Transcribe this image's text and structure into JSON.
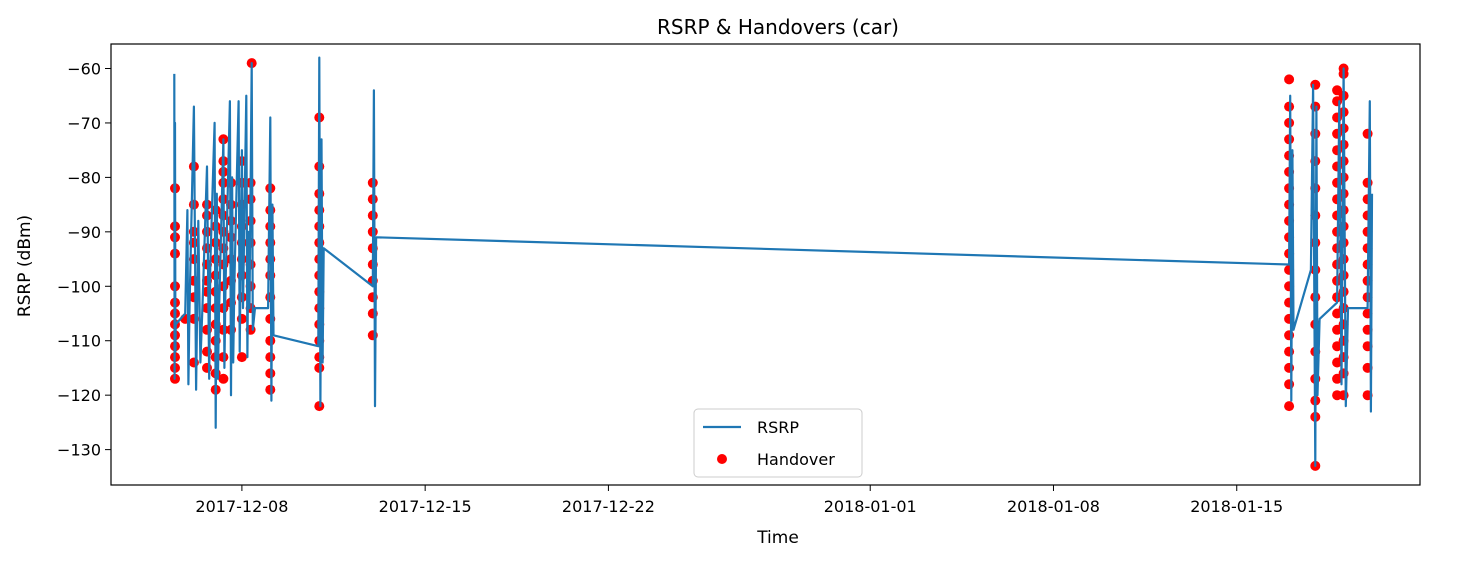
{
  "chart_data": {
    "type": "line",
    "title": "RSRP & Handovers (car)",
    "xlabel": "Time",
    "ylabel": "RSRP (dBm)",
    "x_axis_type": "date",
    "xlim": [
      "2017-12-03T00:00",
      "2018-01-22T00:00"
    ],
    "ylim": [
      -136.5,
      -55.5
    ],
    "x_ticks": [
      "2017-12-08",
      "2017-12-15",
      "2017-12-22",
      "2018-01-01",
      "2018-01-08",
      "2018-01-15"
    ],
    "y_ticks": [
      -60,
      -70,
      -80,
      -90,
      -100,
      -110,
      -120,
      -130
    ],
    "grid": false,
    "legend_position": "lower center",
    "colors": {
      "rsrp": "#1f77b4",
      "handover": "#ff0000"
    },
    "series": [
      {
        "name": "RSRP",
        "kind": "line",
        "points": [
          [
            "2017-12-05T10:00",
            -61
          ],
          [
            "2017-12-05T10:20",
            -117
          ],
          [
            "2017-12-05T10:40",
            -70
          ],
          [
            "2017-12-05T11:00",
            -112
          ],
          [
            "2017-12-05T11:20",
            -107
          ],
          [
            "2017-12-05T20:00",
            -105
          ],
          [
            "2017-12-05T22:00",
            -86
          ],
          [
            "2017-12-05T23:00",
            -118
          ],
          [
            "2017-12-06T00:00",
            -104
          ],
          [
            "2017-12-06T04:00",
            -67
          ],
          [
            "2017-12-06T06:00",
            -119
          ],
          [
            "2017-12-06T08:00",
            -88
          ],
          [
            "2017-12-06T10:00",
            -114
          ],
          [
            "2017-12-06T12:00",
            -103
          ],
          [
            "2017-12-06T16:00",
            -78
          ],
          [
            "2017-12-06T18:00",
            -117
          ],
          [
            "2017-12-06T19:00",
            -96
          ],
          [
            "2017-12-06T23:00",
            -70
          ],
          [
            "2017-12-07T00:00",
            -126
          ],
          [
            "2017-12-07T01:00",
            -83
          ],
          [
            "2017-12-07T02:00",
            -117
          ],
          [
            "2017-12-07T03:00",
            -105
          ],
          [
            "2017-12-07T07:00",
            -73
          ],
          [
            "2017-12-07T08:00",
            -115
          ],
          [
            "2017-12-07T09:00",
            -100
          ],
          [
            "2017-12-07T13:00",
            -66
          ],
          [
            "2017-12-07T14:00",
            -120
          ],
          [
            "2017-12-07T15:00",
            -80
          ],
          [
            "2017-12-07T16:00",
            -114
          ],
          [
            "2017-12-07T17:00",
            -100
          ],
          [
            "2017-12-07T21:00",
            -66
          ],
          [
            "2017-12-07T22:00",
            -112
          ],
          [
            "2017-12-08T00:00",
            -75
          ],
          [
            "2017-12-08T01:00",
            -104
          ],
          [
            "2017-12-08T04:00",
            -65
          ],
          [
            "2017-12-08T05:00",
            -113
          ],
          [
            "2017-12-08T06:00",
            -90
          ],
          [
            "2017-12-08T07:00",
            -104
          ],
          [
            "2017-12-08T09:00",
            -59
          ],
          [
            "2017-12-08T10:00",
            -108
          ],
          [
            "2017-12-08T12:00",
            -104
          ],
          [
            "2017-12-09T00:00",
            -104
          ],
          [
            "2017-12-09T02:00",
            -69
          ],
          [
            "2017-12-09T03:00",
            -121
          ],
          [
            "2017-12-09T04:00",
            -85
          ],
          [
            "2017-12-09T05:00",
            -109
          ],
          [
            "2017-12-10T22:00",
            -111
          ],
          [
            "2017-12-10T23:00",
            -58
          ],
          [
            "2017-12-11T00:00",
            -122
          ],
          [
            "2017-12-11T01:00",
            -73
          ],
          [
            "2017-12-11T02:00",
            -114
          ],
          [
            "2017-12-11T03:00",
            -93
          ],
          [
            "2017-12-13T00:00",
            -100
          ],
          [
            "2017-12-13T01:00",
            -64
          ],
          [
            "2017-12-13T02:00",
            -122
          ],
          [
            "2017-12-13T03:00",
            -91
          ],
          [
            "2018-01-17T00:00",
            -96
          ],
          [
            "2018-01-17T01:00",
            -65
          ],
          [
            "2018-01-17T02:00",
            -121
          ],
          [
            "2018-01-17T03:00",
            -75
          ],
          [
            "2018-01-17T04:00",
            -108
          ],
          [
            "2018-01-17T20:00",
            -97
          ],
          [
            "2018-01-17T22:00",
            -63
          ],
          [
            "2018-01-18T00:00",
            -133
          ],
          [
            "2018-01-18T01:00",
            -67
          ],
          [
            "2018-01-18T02:00",
            -120
          ],
          [
            "2018-01-18T04:00",
            -106
          ],
          [
            "2018-01-18T20:00",
            -103
          ],
          [
            "2018-01-18T22:00",
            -66
          ],
          [
            "2018-01-19T00:00",
            -118
          ],
          [
            "2018-01-19T02:00",
            -60
          ],
          [
            "2018-01-19T04:00",
            -122
          ],
          [
            "2018-01-19T06:00",
            -104
          ],
          [
            "2018-01-20T00:00",
            -104
          ],
          [
            "2018-01-20T02:00",
            -66
          ],
          [
            "2018-01-20T03:00",
            -123
          ],
          [
            "2018-01-20T04:00",
            -83
          ]
        ]
      },
      {
        "name": "Handover",
        "kind": "scatter",
        "groups": [
          {
            "x": "2017-12-05T10:40",
            "y": [
              -82,
              -89,
              -91,
              -94,
              -100,
              -103,
              -105,
              -107,
              -109,
              -111,
              -113,
              -115,
              -117
            ]
          },
          {
            "x": "2017-12-05T20:00",
            "y": [
              -106
            ]
          },
          {
            "x": "2017-12-06T04:00",
            "y": [
              -78,
              -85,
              -90,
              -92,
              -95,
              -99,
              -102,
              -106,
              -114
            ]
          },
          {
            "x": "2017-12-06T16:00",
            "y": [
              -85,
              -87,
              -90,
              -93,
              -96,
              -99,
              -101,
              -104,
              -108,
              -112,
              -115
            ]
          },
          {
            "x": "2017-12-07T00:00",
            "y": [
              -86,
              -89,
              -92,
              -95,
              -98,
              -101,
              -104,
              -107,
              -110,
              -113,
              -116,
              -119
            ]
          },
          {
            "x": "2017-12-07T07:00",
            "y": [
              -73,
              -77,
              -79,
              -81,
              -84,
              -87,
              -90,
              -93,
              -96,
              -100,
              -104,
              -108,
              -113,
              -117
            ]
          },
          {
            "x": "2017-12-07T14:00",
            "y": [
              -81,
              -85,
              -88,
              -91,
              -95,
              -99,
              -103,
              -108
            ]
          },
          {
            "x": "2017-12-08T00:00",
            "y": [
              -77,
              -81,
              -85,
              -89,
              -92,
              -95,
              -98,
              -102,
              -106,
              -113
            ]
          },
          {
            "x": "2017-12-08T08:00",
            "y": [
              -81,
              -84,
              -88,
              -92,
              -96,
              -100,
              -104,
              -108
            ]
          },
          {
            "x": "2017-12-08T09:00",
            "y": [
              -59
            ]
          },
          {
            "x": "2017-12-09T02:00",
            "y": [
              -82,
              -86,
              -89,
              -92,
              -95,
              -98,
              -102,
              -106,
              -110,
              -113,
              -116,
              -119
            ]
          },
          {
            "x": "2017-12-10T23:00",
            "y": [
              -69,
              -78,
              -83,
              -86,
              -89,
              -92,
              -95,
              -98,
              -101,
              -104,
              -107,
              -110,
              -113,
              -115,
              -122
            ]
          },
          {
            "x": "2017-12-13T00:00",
            "y": [
              -81,
              -84,
              -87,
              -90,
              -93,
              -96,
              -99,
              -102,
              -105,
              -109
            ]
          },
          {
            "x": "2018-01-17T00:00",
            "y": [
              -62,
              -67,
              -70,
              -73,
              -76,
              -79,
              -82,
              -85,
              -88,
              -91,
              -94,
              -97,
              -100,
              -103,
              -106,
              -109,
              -112,
              -115,
              -118,
              -122
            ]
          },
          {
            "x": "2018-01-18T00:00",
            "y": [
              -63,
              -67,
              -72,
              -77,
              -82,
              -87,
              -92,
              -97,
              -102,
              -107,
              -112,
              -117,
              -121,
              -124,
              -133
            ]
          },
          {
            "x": "2018-01-18T20:00",
            "y": [
              -64,
              -66,
              -69,
              -72,
              -75,
              -78,
              -81,
              -84,
              -87,
              -90,
              -93,
              -96,
              -99,
              -102,
              -105,
              -108,
              -111,
              -114,
              -117,
              -120
            ]
          },
          {
            "x": "2018-01-19T02:00",
            "y": [
              -60,
              -61,
              -65,
              -68,
              -71,
              -74,
              -77,
              -80,
              -83,
              -86,
              -89,
              -92,
              -95,
              -98,
              -101,
              -104,
              -107,
              -110,
              -113,
              -116,
              -120
            ]
          },
          {
            "x": "2018-01-20T00:00",
            "y": [
              -72,
              -81,
              -84,
              -87,
              -90,
              -93,
              -96,
              -99,
              -102,
              -105,
              -108,
              -111,
              -115,
              -120
            ]
          }
        ]
      }
    ],
    "legend": [
      {
        "label": "RSRP",
        "marker": "line",
        "color": "#1f77b4"
      },
      {
        "label": "Handover",
        "marker": "dot",
        "color": "#ff0000"
      }
    ]
  }
}
